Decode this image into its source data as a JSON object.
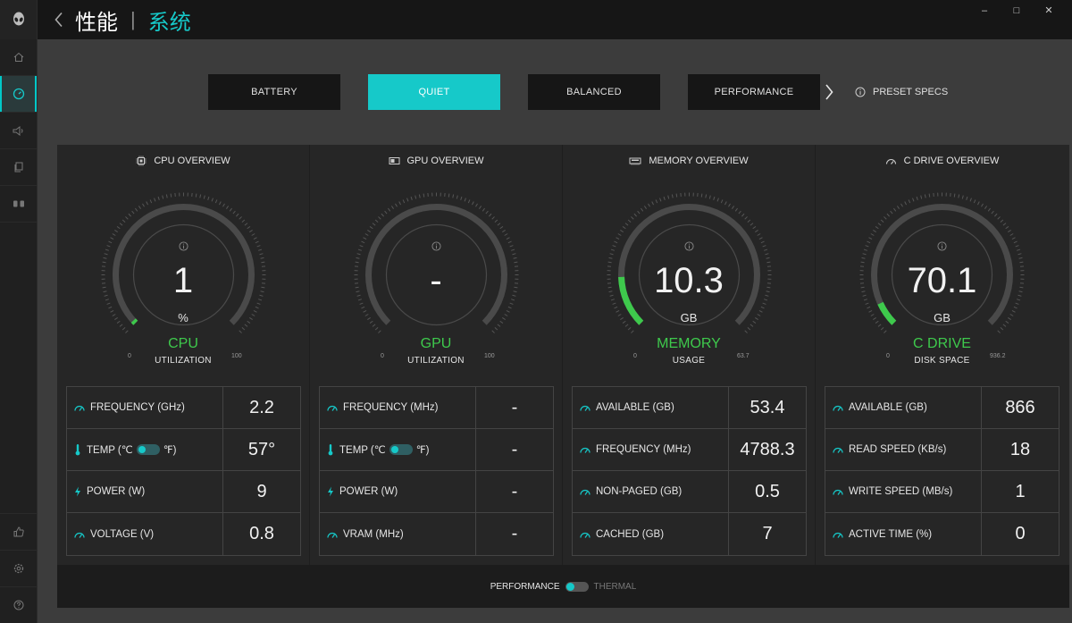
{
  "titlebar": {
    "parent": "性能",
    "separator": "|",
    "current": "系统"
  },
  "window_controls": {
    "minimize": "–",
    "maximize": "□",
    "close": "✕"
  },
  "modes": [
    {
      "label": "BATTERY",
      "active": false
    },
    {
      "label": "QUIET",
      "active": true
    },
    {
      "label": "BALANCED",
      "active": false
    },
    {
      "label": "PERFORMANCE",
      "active": false
    }
  ],
  "preset_specs": "PRESET SPECS",
  "accent": "#16c9c9",
  "gauge_color": "#3ec94c",
  "panels": [
    {
      "title": "CPU OVERVIEW",
      "icon": "cpu-icon",
      "value": "1",
      "unit": "%",
      "label": "CPU",
      "sub": "UTILIZATION",
      "min": "0",
      "max": "100",
      "fill": 0.01,
      "stats": [
        {
          "name": "FREQUENCY (GHz)",
          "value": "2.2",
          "icon": "gauge-icon"
        },
        {
          "name": "TEMP (℃",
          "name_end": "℉)",
          "value": "57°",
          "icon": "thermometer-icon",
          "toggle": true
        },
        {
          "name": "POWER (W)",
          "value": "9",
          "icon": "bolt-icon"
        },
        {
          "name": "VOLTAGE (V)",
          "value": "0.8",
          "icon": "gauge-icon"
        }
      ]
    },
    {
      "title": "GPU OVERVIEW",
      "icon": "gpu-icon",
      "value": "-",
      "unit": "",
      "label": "GPU",
      "sub": "UTILIZATION",
      "min": "0",
      "max": "100",
      "fill": 0,
      "stats": [
        {
          "name": "FREQUENCY (MHz)",
          "value": "-",
          "icon": "gauge-icon"
        },
        {
          "name": "TEMP (℃",
          "name_end": "℉)",
          "value": "-",
          "icon": "thermometer-icon",
          "toggle": true
        },
        {
          "name": "POWER (W)",
          "value": "-",
          "icon": "bolt-icon"
        },
        {
          "name": "VRAM (MHz)",
          "value": "-",
          "icon": "gauge-icon"
        }
      ]
    },
    {
      "title": "MEMORY OVERVIEW",
      "icon": "memory-icon",
      "value": "10.3",
      "unit": "GB",
      "label": "MEMORY",
      "sub": "USAGE",
      "min": "0",
      "max": "63.7",
      "fill": 0.16,
      "stats": [
        {
          "name": "AVAILABLE (GB)",
          "value": "53.4",
          "icon": "gauge-icon"
        },
        {
          "name": "FREQUENCY (MHz)",
          "value": "4788.3",
          "icon": "gauge-icon"
        },
        {
          "name": "NON-PAGED (GB)",
          "value": "0.5",
          "icon": "gauge-icon"
        },
        {
          "name": "CACHED (GB)",
          "value": "7",
          "icon": "gauge-icon"
        }
      ]
    },
    {
      "title": "C DRIVE OVERVIEW",
      "icon": "drive-icon",
      "value": "70.1",
      "unit": "GB",
      "label": "C DRIVE",
      "sub": "DISK SPACE",
      "min": "0",
      "max": "936.2",
      "fill": 0.075,
      "stats": [
        {
          "name": "AVAILABLE (GB)",
          "value": "866",
          "icon": "gauge-icon"
        },
        {
          "name": "READ SPEED (KB/s)",
          "value": "18",
          "icon": "gauge-icon"
        },
        {
          "name": "WRITE SPEED (MB/s)",
          "value": "1",
          "icon": "gauge-icon"
        },
        {
          "name": "ACTIVE TIME (%)",
          "value": "0",
          "icon": "gauge-icon"
        }
      ]
    }
  ],
  "footer": {
    "left": "PERFORMANCE",
    "right": "THERMAL"
  }
}
